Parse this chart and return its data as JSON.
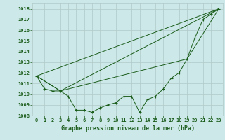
{
  "title": "Graphe pression niveau de la mer (hPa)",
  "bg_color": "#cce8e8",
  "grid_color": "#b0c8c8",
  "line_color": "#1a5c1a",
  "ylim": [
    1008,
    1018.5
  ],
  "yticks": [
    1008,
    1009,
    1010,
    1011,
    1012,
    1013,
    1014,
    1015,
    1016,
    1017,
    1018
  ],
  "xlim": [
    -0.5,
    23.5
  ],
  "xticks": [
    0,
    1,
    2,
    3,
    4,
    5,
    6,
    7,
    8,
    9,
    10,
    11,
    12,
    13,
    14,
    15,
    16,
    17,
    18,
    19,
    20,
    21,
    22,
    23
  ],
  "main_line": {
    "x": [
      0,
      1,
      2,
      3,
      4,
      5,
      6,
      7,
      8,
      9,
      10,
      11,
      12,
      13,
      14,
      15,
      16,
      17,
      18,
      19,
      20,
      21,
      22,
      23
    ],
    "y": [
      1011.7,
      1010.5,
      1010.3,
      1010.3,
      1009.8,
      1008.5,
      1008.5,
      1008.3,
      1008.7,
      1009.0,
      1009.2,
      1009.8,
      1009.8,
      1008.3,
      1009.5,
      1009.8,
      1010.5,
      1011.5,
      1012.0,
      1013.3,
      1015.3,
      1017.0,
      1017.5,
      1018.0
    ]
  },
  "extra_lines": [
    {
      "x": [
        0,
        23
      ],
      "y": [
        1011.7,
        1018.0
      ]
    },
    {
      "x": [
        0,
        3,
        23
      ],
      "y": [
        1011.7,
        1010.3,
        1018.0
      ]
    },
    {
      "x": [
        0,
        3,
        19,
        23
      ],
      "y": [
        1011.7,
        1010.3,
        1013.3,
        1018.0
      ]
    }
  ]
}
